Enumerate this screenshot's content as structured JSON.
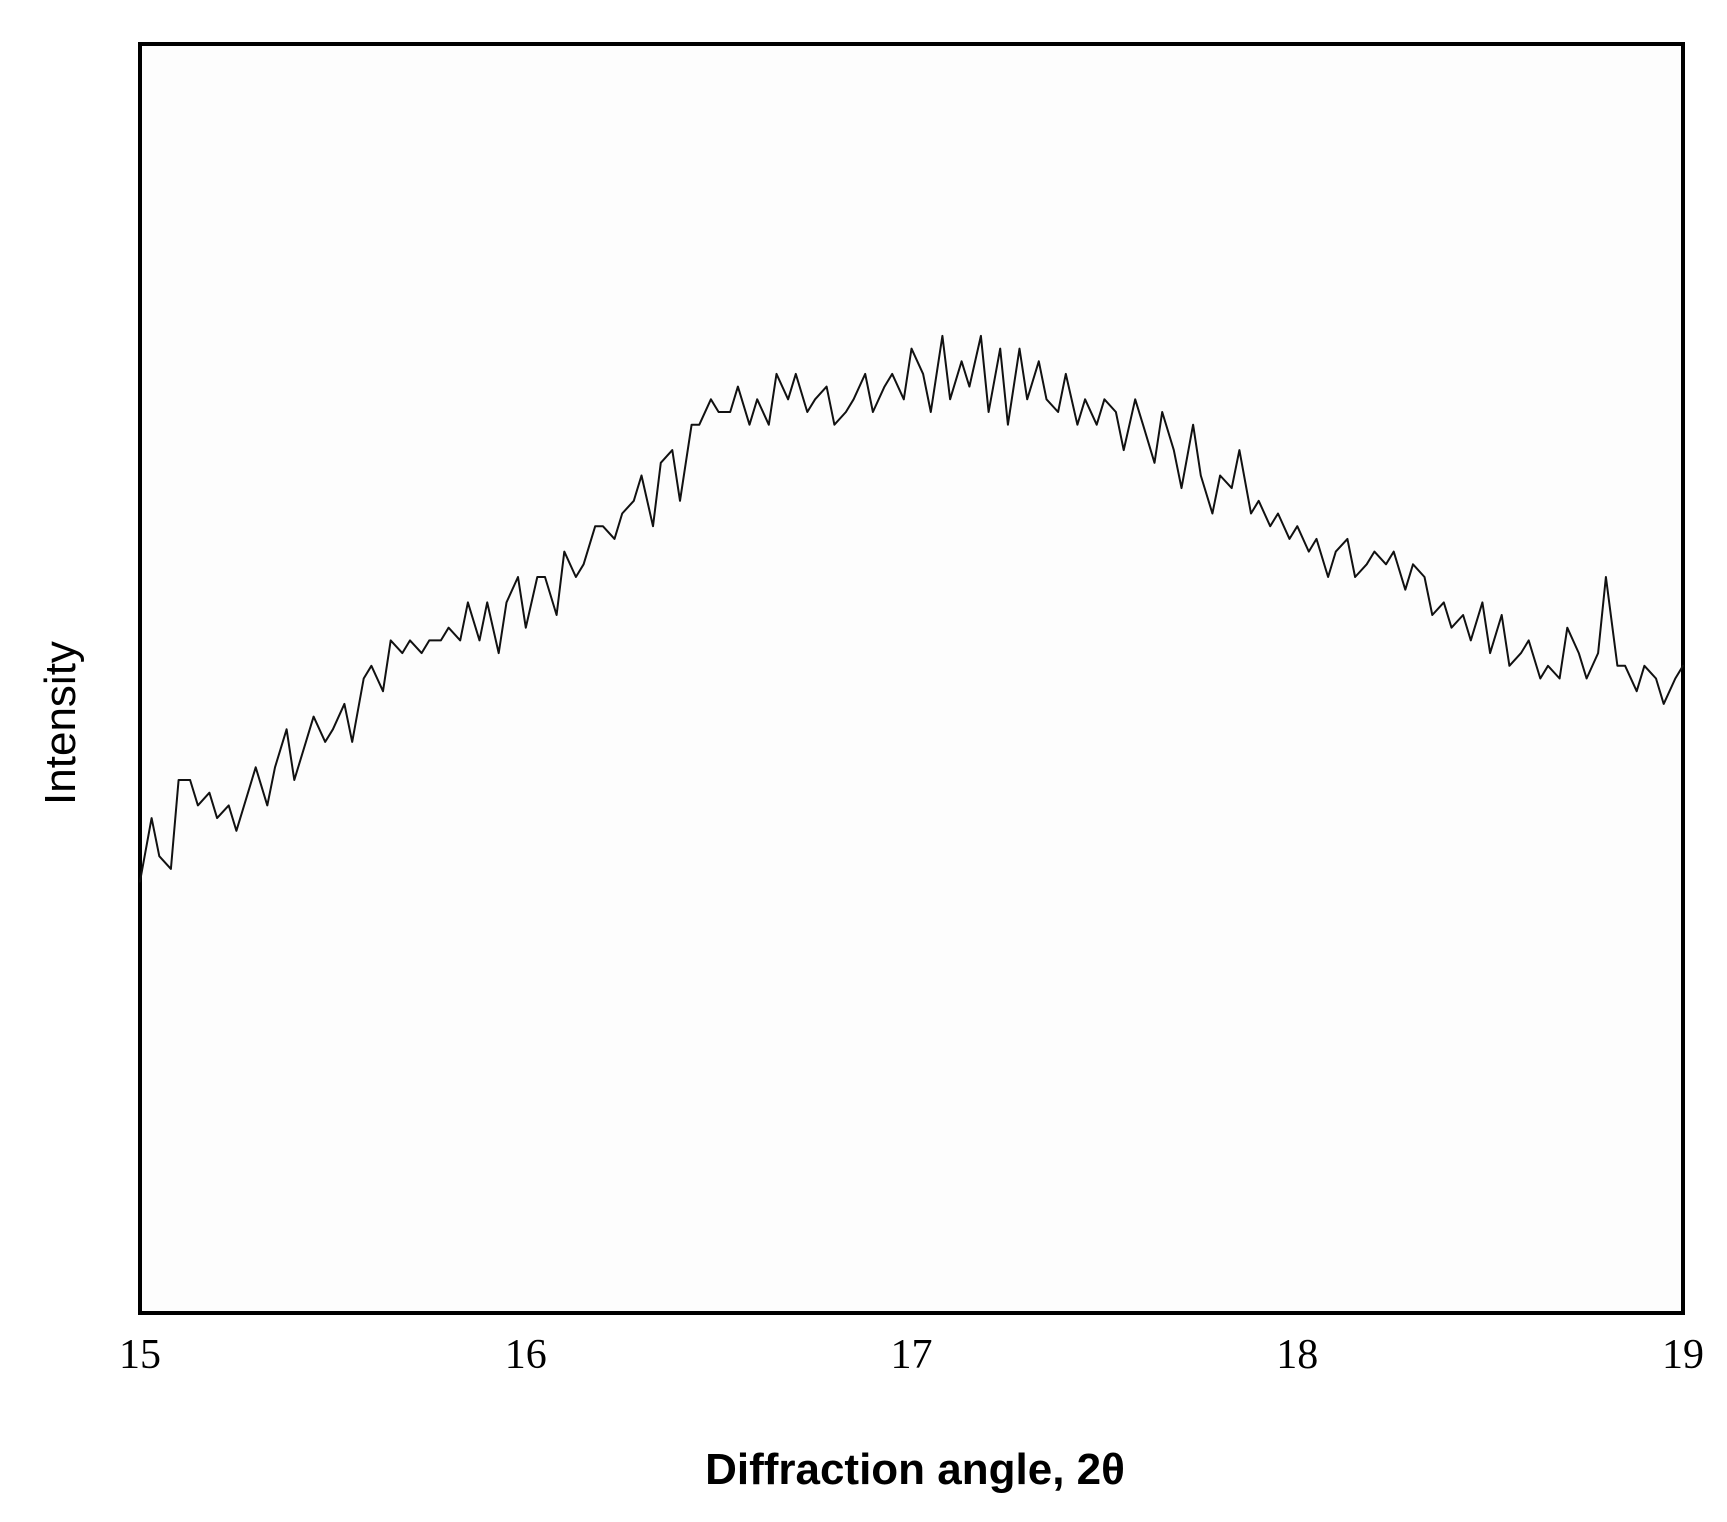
{
  "chart_data": {
    "type": "line",
    "title": "",
    "xlabel": "Diffraction angle, 2θ",
    "ylabel": "Intensity",
    "xlim": [
      15,
      19
    ],
    "ylim": [
      0,
      100
    ],
    "x_ticks": [
      "15",
      "16",
      "17",
      "18",
      "19"
    ],
    "y_ticks": [],
    "grid": false,
    "legend": "none",
    "line_color": "#111111",
    "series": [
      {
        "x": [
          15.0,
          15.03,
          15.05,
          15.08,
          15.1,
          15.13,
          15.15,
          15.18,
          15.2,
          15.23,
          15.25,
          15.28,
          15.3,
          15.33,
          15.35,
          15.38,
          15.4,
          15.43,
          15.45,
          15.48,
          15.5,
          15.53,
          15.55,
          15.58,
          15.6,
          15.63,
          15.65,
          15.68,
          15.7,
          15.73,
          15.75,
          15.78,
          15.8,
          15.83,
          15.85,
          15.88,
          15.9,
          15.93,
          15.95,
          15.98,
          16.0,
          16.03,
          16.05,
          16.08,
          16.1,
          16.13,
          16.15,
          16.18,
          16.2,
          16.23,
          16.25,
          16.28,
          16.3,
          16.33,
          16.35,
          16.38,
          16.4,
          16.43,
          16.45,
          16.48,
          16.5,
          16.53,
          16.55,
          16.58,
          16.6,
          16.63,
          16.65,
          16.68,
          16.7,
          16.73,
          16.75,
          16.78,
          16.8,
          16.83,
          16.85,
          16.88,
          16.9,
          16.93,
          16.95,
          16.98,
          17.0,
          17.03,
          17.05,
          17.08,
          17.1,
          17.13,
          17.15,
          17.18,
          17.2,
          17.23,
          17.25,
          17.28,
          17.3,
          17.33,
          17.35,
          17.38,
          17.4,
          17.43,
          17.45,
          17.48,
          17.5,
          17.53,
          17.55,
          17.58,
          17.6,
          17.63,
          17.65,
          17.68,
          17.7,
          17.73,
          17.75,
          17.78,
          17.8,
          17.83,
          17.85,
          17.88,
          17.9,
          17.93,
          17.95,
          17.98,
          18.0,
          18.03,
          18.05,
          18.08,
          18.1,
          18.13,
          18.15,
          18.18,
          18.2,
          18.23,
          18.25,
          18.28,
          18.3,
          18.33,
          18.35,
          18.38,
          18.4,
          18.43,
          18.45,
          18.48,
          18.5,
          18.53,
          18.55,
          18.58,
          18.6,
          18.63,
          18.65,
          18.68,
          18.7,
          18.73,
          18.75,
          18.78,
          18.8,
          18.83,
          18.85,
          18.88,
          18.9,
          18.93,
          18.95,
          18.98,
          19.0
        ],
        "values": [
          34,
          39,
          36,
          35,
          42,
          42,
          40,
          41,
          39,
          40,
          38,
          41,
          43,
          40,
          43,
          46,
          42,
          45,
          47,
          45,
          46,
          48,
          45,
          50,
          51,
          49,
          53,
          52,
          53,
          52,
          53,
          53,
          54,
          53,
          56,
          53,
          56,
          52,
          56,
          58,
          54,
          58,
          58,
          55,
          60,
          58,
          59,
          62,
          62,
          61,
          63,
          64,
          66,
          62,
          67,
          68,
          64,
          70,
          70,
          72,
          71,
          71,
          73,
          70,
          72,
          70,
          74,
          72,
          74,
          71,
          72,
          73,
          70,
          71,
          72,
          74,
          71,
          73,
          74,
          72,
          76,
          74,
          71,
          77,
          72,
          75,
          73,
          77,
          71,
          76,
          70,
          76,
          72,
          75,
          72,
          71,
          74,
          70,
          72,
          70,
          72,
          71,
          68,
          72,
          70,
          67,
          71,
          68,
          65,
          70,
          66,
          63,
          66,
          65,
          68,
          63,
          64,
          62,
          63,
          61,
          62,
          60,
          61,
          58,
          60,
          61,
          58,
          59,
          60,
          59,
          60,
          57,
          59,
          58,
          55,
          56,
          54,
          55,
          53,
          56,
          52,
          55,
          51,
          52,
          53,
          50,
          51,
          50,
          54,
          52,
          50,
          52,
          58,
          51,
          51,
          49,
          51,
          50,
          48,
          50,
          51
        ]
      }
    ]
  }
}
